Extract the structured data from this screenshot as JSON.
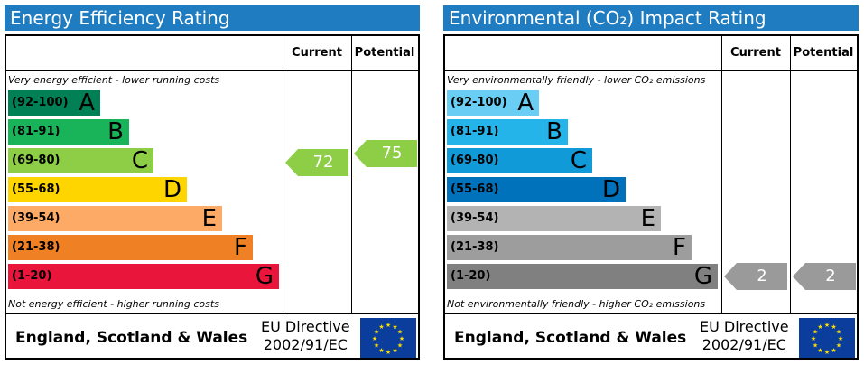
{
  "chart_data": [
    {
      "type": "table",
      "title": "Energy Efficiency Rating",
      "column_headers": [
        "Current",
        "Potential"
      ],
      "top_note": "Very energy efficient - lower running costs",
      "bottom_note": "Not energy efficient - higher running costs",
      "bands": [
        {
          "range": "(92-100)",
          "letter": "A",
          "color": "#008054"
        },
        {
          "range": "(81-91)",
          "letter": "B",
          "color": "#19b459"
        },
        {
          "range": "(69-80)",
          "letter": "C",
          "color": "#8dce46"
        },
        {
          "range": "(55-68)",
          "letter": "D",
          "color": "#ffd500"
        },
        {
          "range": "(39-54)",
          "letter": "E",
          "color": "#fcaa65"
        },
        {
          "range": "(21-38)",
          "letter": "F",
          "color": "#ef8023"
        },
        {
          "range": "(1-20)",
          "letter": "G",
          "color": "#e9153b"
        }
      ],
      "current": {
        "value": 72,
        "band": "C",
        "color": "#8dce46"
      },
      "potential": {
        "value": 75,
        "band": "C",
        "color": "#8dce46"
      },
      "footer": {
        "region": "England, Scotland & Wales",
        "directive_line1": "EU Directive",
        "directive_line2": "2002/91/EC"
      }
    },
    {
      "type": "table",
      "title": "Environmental (CO₂) Impact Rating",
      "column_headers": [
        "Current",
        "Potential"
      ],
      "top_note": "Very environmentally friendly - lower CO₂ emissions",
      "bottom_note": "Not environmentally friendly - higher CO₂ emissions",
      "bands": [
        {
          "range": "(92-100)",
          "letter": "A",
          "color": "#6acef4"
        },
        {
          "range": "(81-91)",
          "letter": "B",
          "color": "#24b4ea"
        },
        {
          "range": "(69-80)",
          "letter": "C",
          "color": "#119ad8"
        },
        {
          "range": "(55-68)",
          "letter": "D",
          "color": "#0072bc"
        },
        {
          "range": "(39-54)",
          "letter": "E",
          "color": "#b3b3b3"
        },
        {
          "range": "(21-38)",
          "letter": "F",
          "color": "#9d9d9d"
        },
        {
          "range": "(1-20)",
          "letter": "G",
          "color": "#808080"
        }
      ],
      "current": {
        "value": 2,
        "band": "G",
        "color": "#9a9a9a"
      },
      "potential": {
        "value": 2,
        "band": "G",
        "color": "#9a9a9a"
      },
      "footer": {
        "region": "England, Scotland & Wales",
        "directive_line1": "EU Directive",
        "directive_line2": "2002/91/EC"
      }
    }
  ]
}
